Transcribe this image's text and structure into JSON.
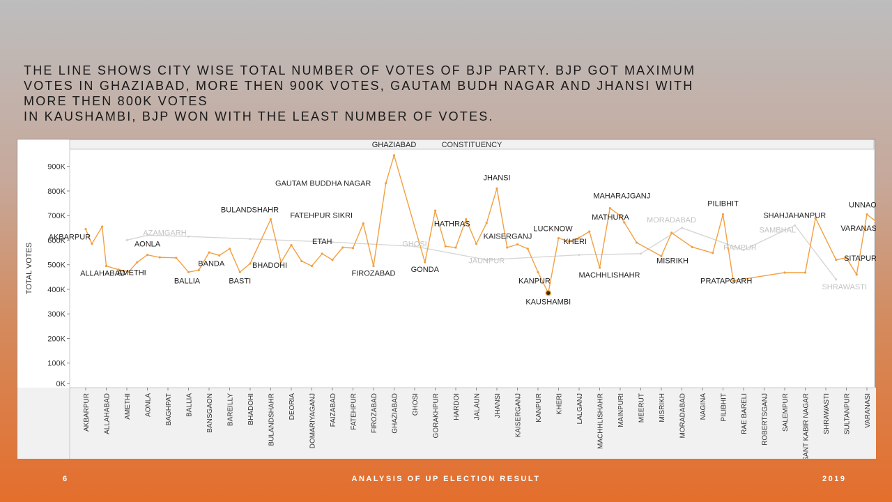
{
  "headline": {
    "line1": "THE LINE SHOWS CITY WISE TOTAL NUMBER OF VOTES OF BJP PARTY. BJP GOT MAXIMUM",
    "line2": "VOTES IN GHAZIABAD, MORE THEN 900K VOTES, GAUTAM BUDH NAGAR AND JHANSI WITH",
    "line3": "MORE THEN 800K VOTES",
    "line4": "IN KAUSHAMBI, BJP WON WITH THE LEAST NUMBER OF VOTES."
  },
  "footer": {
    "page_number": "6",
    "title": "ANALYSIS OF UP ELECTION RESULT",
    "year": "2019"
  },
  "chart_data": {
    "type": "line",
    "title": "CONSTITUENCY",
    "ylabel": "TOTAL VOTES",
    "xlabel": "",
    "ylim": [
      0,
      970000
    ],
    "yticks": [
      {
        "value": 0,
        "label": "0K"
      },
      {
        "value": 100000,
        "label": "100K"
      },
      {
        "value": 200000,
        "label": "200K"
      },
      {
        "value": 300000,
        "label": "300K"
      },
      {
        "value": 400000,
        "label": "400K"
      },
      {
        "value": 500000,
        "label": "500K"
      },
      {
        "value": 600000,
        "label": "600K"
      },
      {
        "value": 700000,
        "label": "700K"
      },
      {
        "value": 800000,
        "label": "800K"
      },
      {
        "value": 900000,
        "label": "900K"
      }
    ],
    "categories": [
      "AKBARPUR",
      "ALLAHABAD",
      "AMETHI",
      "AONLA",
      "BAGHPAT",
      "BALLIA",
      "BANSGAON",
      "BAREILLY",
      "BHADOHI",
      "BULANDSHAHR",
      "DEORIA",
      "DOMARIYAGANJ",
      "FAIZABAD",
      "FATEHPUR",
      "FIROZABAD",
      "GHAZIABAD",
      "GHOSI",
      "GORAKHPUR",
      "HARDOI",
      "JALAUN",
      "JHANSI",
      "KAISERGANJ",
      "KANPUR",
      "KHERI",
      "LALGANJ",
      "MACHHLISHAHR",
      "MAINPURI",
      "MEERUT",
      "MISRIKH",
      "MORADABAD",
      "NAGINA",
      "PILIBHIT",
      "RAE BARELI",
      "ROBERTSGANJ",
      "SALEMPUR",
      "SANT KABIR NAGAR",
      "SHRAWASTI",
      "SULTANPUR",
      "VARANASI"
    ],
    "series": [
      {
        "color": "#f2a041",
        "points": [
          {
            "x": 0.0,
            "y": 645000
          },
          {
            "x": 0.3,
            "y": 585000,
            "label": "AKBARPUR"
          },
          {
            "x": 0.8,
            "y": 655000
          },
          {
            "x": 1.0,
            "y": 495000,
            "label": "ALLAHABAD"
          },
          {
            "x": 1.6,
            "y": 480000
          },
          {
            "x": 2.1,
            "y": 472000,
            "label": "AMETHI"
          },
          {
            "x": 2.5,
            "y": 510000
          },
          {
            "x": 3.0,
            "y": 540000,
            "label": "AONLA"
          },
          {
            "x": 3.6,
            "y": 530000
          },
          {
            "x": 4.4,
            "y": 528000
          },
          {
            "x": 5.0,
            "y": 470000,
            "label": "BALLIA"
          },
          {
            "x": 5.5,
            "y": 478000,
            "label": "BANDA"
          },
          {
            "x": 6.0,
            "y": 550000
          },
          {
            "x": 6.5,
            "y": 538000
          },
          {
            "x": 7.0,
            "y": 565000
          },
          {
            "x": 7.5,
            "y": 470000,
            "label": "BASTI"
          },
          {
            "x": 8.0,
            "y": 505000,
            "label": "BHADOHI"
          },
          {
            "x": 9.0,
            "y": 685000,
            "label": "BULANDSHAHR"
          },
          {
            "x": 9.5,
            "y": 510000
          },
          {
            "x": 10.0,
            "y": 580000
          },
          {
            "x": 10.5,
            "y": 515000
          },
          {
            "x": 11.0,
            "y": 495000
          },
          {
            "x": 11.5,
            "y": 545000,
            "label": "ETAH"
          },
          {
            "x": 12.0,
            "y": 520000
          },
          {
            "x": 12.5,
            "y": 570000
          },
          {
            "x": 13.0,
            "y": 568000
          },
          {
            "x": 13.5,
            "y": 668000,
            "label": "FATEHPUR SIKRI"
          },
          {
            "x": 14.0,
            "y": 495000,
            "label": "FIROZABAD"
          },
          {
            "x": 14.6,
            "y": 832000,
            "label": "GAUTAM BUDDHA NAGAR"
          },
          {
            "x": 15.0,
            "y": 945000,
            "label": "GHAZIABAD"
          },
          {
            "x": 16.5,
            "y": 510000,
            "label": "GONDA"
          },
          {
            "x": 17.0,
            "y": 720000
          },
          {
            "x": 17.5,
            "y": 575000
          },
          {
            "x": 18.0,
            "y": 570000
          },
          {
            "x": 18.5,
            "y": 685000,
            "label": "HATHRAS"
          },
          {
            "x": 19.0,
            "y": 585000
          },
          {
            "x": 19.5,
            "y": 670000
          },
          {
            "x": 20.0,
            "y": 810000,
            "label": "JHANSI"
          },
          {
            "x": 20.5,
            "y": 570000
          },
          {
            "x": 21.0,
            "y": 583000,
            "label": "KAISERGANJ"
          },
          {
            "x": 21.5,
            "y": 565000
          },
          {
            "x": 22.0,
            "y": 470000,
            "label": "KANPUR"
          },
          {
            "x": 22.5,
            "y": 385000,
            "label": "KAUSHAMBI",
            "highlight": true
          },
          {
            "x": 23.0,
            "y": 608000,
            "label": "LUCKNOW"
          },
          {
            "x": 23.5,
            "y": 595000,
            "label": "KHERI"
          },
          {
            "x": 24.0,
            "y": 610000
          },
          {
            "x": 24.5,
            "y": 635000
          },
          {
            "x": 25.0,
            "y": 488000,
            "label": "MACHHLISHAHR"
          },
          {
            "x": 25.5,
            "y": 730000,
            "label": "MAHARAJGANJ"
          },
          {
            "x": 26.0,
            "y": 700000
          },
          {
            "x": 26.2,
            "y": 672000,
            "label": "MATHURA"
          },
          {
            "x": 26.8,
            "y": 590000
          },
          {
            "x": 28.0,
            "y": 535000,
            "label": "MISRIKH"
          },
          {
            "x": 28.5,
            "y": 630000
          },
          {
            "x": 29.5,
            "y": 572000
          },
          {
            "x": 30.5,
            "y": 548000
          },
          {
            "x": 31.0,
            "y": 705000,
            "label": "PILIBHIT"
          },
          {
            "x": 31.5,
            "y": 435000,
            "label": "PRATAPGARH"
          },
          {
            "x": 34.0,
            "y": 468000
          },
          {
            "x": 35.0,
            "y": 468000
          },
          {
            "x": 35.5,
            "y": 690000,
            "label": "SHAHJAHANPUR"
          },
          {
            "x": 36.5,
            "y": 520000
          },
          {
            "x": 37.0,
            "y": 528000,
            "label": "SITAPUR"
          },
          {
            "x": 37.5,
            "y": 460000
          },
          {
            "x": 38.0,
            "y": 705000,
            "label": "UNNAO"
          },
          {
            "x": 38.5,
            "y": 672000,
            "label": "VARANASI"
          }
        ]
      },
      {
        "color": "#d6d6d6",
        "points": [
          {
            "x": 2.0,
            "y": 600000
          },
          {
            "x": 3.0,
            "y": 620000,
            "label": "AZAMGARH"
          },
          {
            "x": 5.0,
            "y": 615000
          },
          {
            "x": 8.0,
            "y": 605000
          },
          {
            "x": 12.0,
            "y": 592000
          },
          {
            "x": 16.0,
            "y": 575000,
            "label": "GHOSI"
          },
          {
            "x": 19.5,
            "y": 520000,
            "label": "JAUNPUR"
          },
          {
            "x": 24.0,
            "y": 540000
          },
          {
            "x": 27.0,
            "y": 545000
          },
          {
            "x": 29.0,
            "y": 650000,
            "label": "MORADABAD"
          },
          {
            "x": 32.0,
            "y": 560000,
            "label": "RAMPUR"
          },
          {
            "x": 34.5,
            "y": 660000,
            "label": "SAMBHAL"
          },
          {
            "x": 36.5,
            "y": 440000,
            "label": "SHRAWASTI"
          }
        ]
      }
    ]
  }
}
